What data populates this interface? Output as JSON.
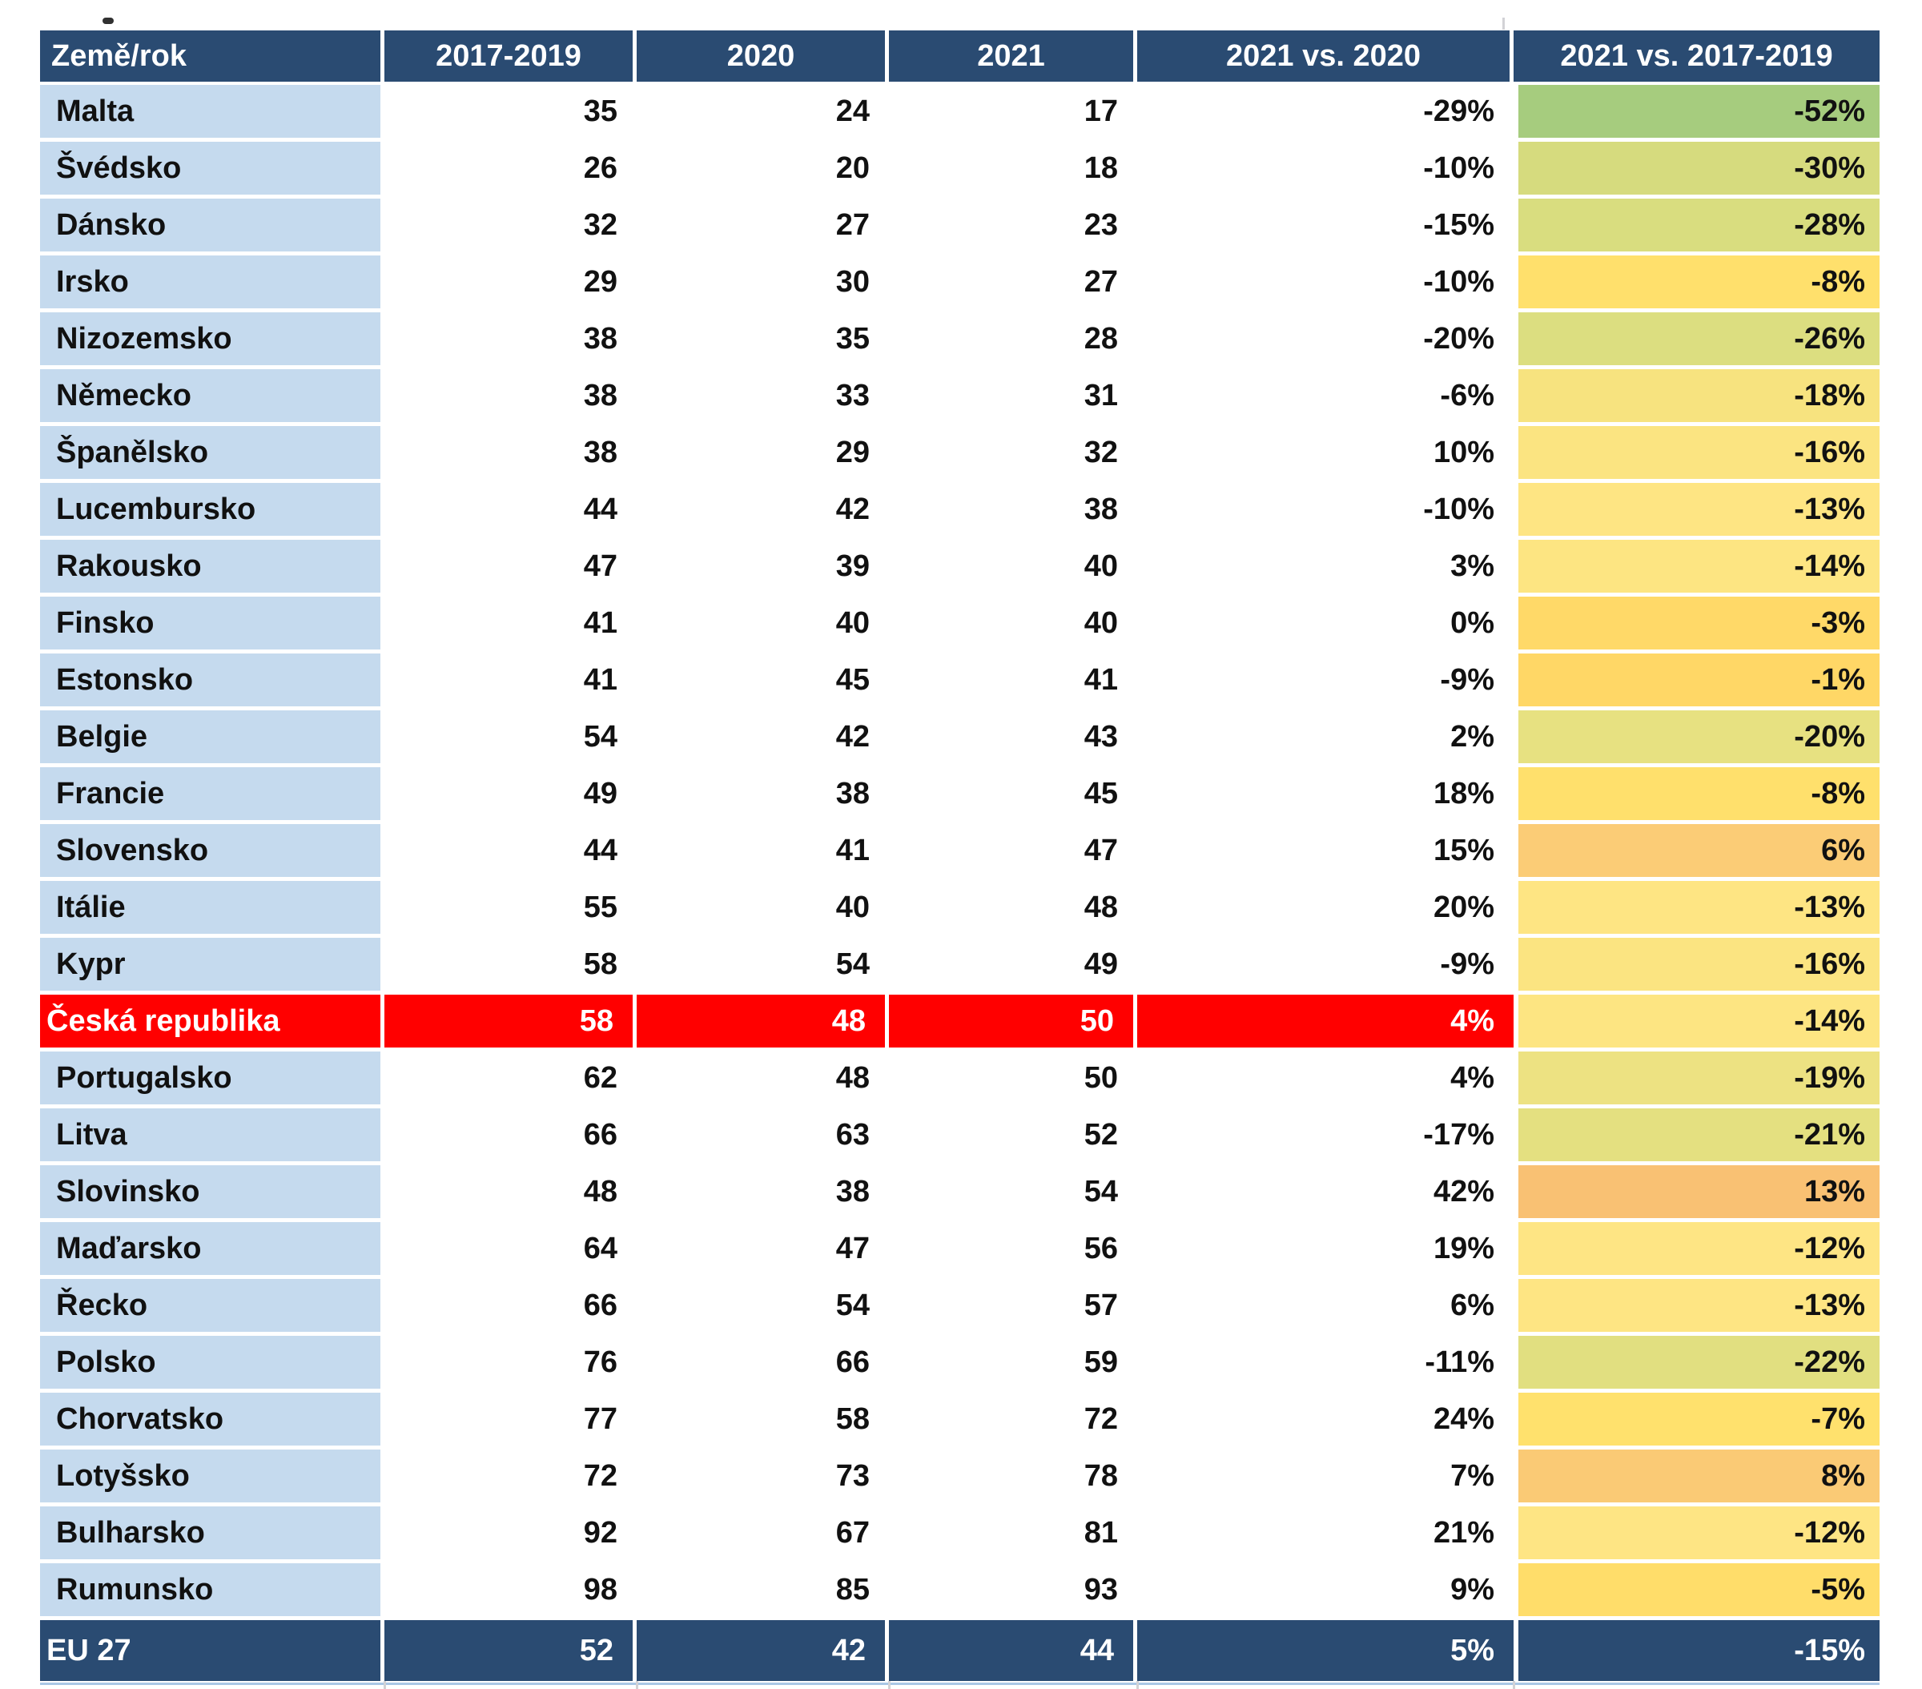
{
  "styles": {
    "header_bg": "#2A4B72",
    "header_text": "#FFFFFF",
    "country_col_bg": "#C5DAEE",
    "body_bg": "#FFFFFF",
    "body_text": "#111111",
    "highlight_row_bg": "#FF0000",
    "highlight_row_text": "#FFFFFF",
    "footer_bg": "#2A4B72",
    "footer_text": "#FFFFFF",
    "footer_accent_line": "#A9C7E6",
    "artifact_color": "#1B1B1B",
    "tick_color": "#D2D2D6"
  },
  "chart_data": {
    "type": "table",
    "title": "",
    "legend_position": "none",
    "color_scale_note": "last column shaded green (low) to orange (high) by value",
    "columns": [
      {
        "key": "country",
        "label": "Země/rok"
      },
      {
        "key": "y2017_2019",
        "label": "2017-2019"
      },
      {
        "key": "y2020",
        "label": "2020"
      },
      {
        "key": "y2021",
        "label": "2021"
      },
      {
        "key": "vs2020",
        "label": "2021 vs. 2020"
      },
      {
        "key": "vs2017_2019",
        "label": "2021 vs. 2017-2019"
      }
    ],
    "rows": [
      {
        "country": "Malta",
        "y2017_2019": 35,
        "y2020": 24,
        "y2021": 17,
        "vs2020": "-29%",
        "vs2017_2019": "-52%",
        "trend_color": "#A6CC7E",
        "highlight": false
      },
      {
        "country": "Švédsko",
        "y2017_2019": 26,
        "y2020": 20,
        "y2021": 18,
        "vs2020": "-10%",
        "vs2017_2019": "-30%",
        "trend_color": "#D6DB7E",
        "highlight": false
      },
      {
        "country": "Dánsko",
        "y2017_2019": 32,
        "y2020": 27,
        "y2021": 23,
        "vs2020": "-15%",
        "vs2017_2019": "-28%",
        "trend_color": "#D9DD7F",
        "highlight": false
      },
      {
        "country": "Irsko",
        "y2017_2019": 29,
        "y2020": 30,
        "y2021": 27,
        "vs2020": "-10%",
        "vs2017_2019": "-8%",
        "trend_color": "#FFE06C",
        "highlight": false
      },
      {
        "country": "Nizozemsko",
        "y2017_2019": 38,
        "y2020": 35,
        "y2021": 28,
        "vs2020": "-20%",
        "vs2017_2019": "-26%",
        "trend_color": "#DCDE80",
        "highlight": false
      },
      {
        "country": "Německo",
        "y2017_2019": 38,
        "y2020": 33,
        "y2021": 31,
        "vs2020": "-6%",
        "vs2017_2019": "-18%",
        "trend_color": "#F7E37F",
        "highlight": false
      },
      {
        "country": "Španělsko",
        "y2017_2019": 38,
        "y2020": 29,
        "y2021": 32,
        "vs2020": "10%",
        "vs2017_2019": "-16%",
        "trend_color": "#FBE481",
        "highlight": false
      },
      {
        "country": "Lucembursko",
        "y2017_2019": 44,
        "y2020": 42,
        "y2021": 38,
        "vs2020": "-10%",
        "vs2017_2019": "-13%",
        "trend_color": "#FEE583",
        "highlight": false
      },
      {
        "country": "Rakousko",
        "y2017_2019": 47,
        "y2020": 39,
        "y2021": 40,
        "vs2020": "3%",
        "vs2017_2019": "-14%",
        "trend_color": "#FDE582",
        "highlight": false
      },
      {
        "country": "Finsko",
        "y2017_2019": 41,
        "y2020": 40,
        "y2021": 40,
        "vs2020": "0%",
        "vs2017_2019": "-3%",
        "trend_color": "#FFD968",
        "highlight": false
      },
      {
        "country": "Estonsko",
        "y2017_2019": 41,
        "y2020": 45,
        "y2021": 41,
        "vs2020": "-9%",
        "vs2017_2019": "-1%",
        "trend_color": "#FFD766",
        "highlight": false
      },
      {
        "country": "Belgie",
        "y2017_2019": 54,
        "y2020": 42,
        "y2021": 43,
        "vs2020": "2%",
        "vs2017_2019": "-20%",
        "trend_color": "#E7E181",
        "highlight": false
      },
      {
        "country": "Francie",
        "y2017_2019": 49,
        "y2020": 38,
        "y2021": 45,
        "vs2020": "18%",
        "vs2017_2019": "-8%",
        "trend_color": "#FFE06C",
        "highlight": false
      },
      {
        "country": "Slovensko",
        "y2017_2019": 44,
        "y2020": 41,
        "y2021": 47,
        "vs2020": "15%",
        "vs2017_2019": "6%",
        "trend_color": "#FBCC76",
        "highlight": false
      },
      {
        "country": "Itálie",
        "y2017_2019": 55,
        "y2020": 40,
        "y2021": 48,
        "vs2020": "20%",
        "vs2017_2019": "-13%",
        "trend_color": "#FEE583",
        "highlight": false
      },
      {
        "country": "Kypr",
        "y2017_2019": 58,
        "y2020": 54,
        "y2021": 49,
        "vs2020": "-9%",
        "vs2017_2019": "-16%",
        "trend_color": "#FBE481",
        "highlight": false
      },
      {
        "country": "Česká republika",
        "y2017_2019": 58,
        "y2020": 48,
        "y2021": 50,
        "vs2020": "4%",
        "vs2017_2019": "-14%",
        "trend_color": "#FDE582",
        "highlight": true
      },
      {
        "country": "Portugalsko",
        "y2017_2019": 62,
        "y2020": 48,
        "y2021": 50,
        "vs2020": "4%",
        "vs2017_2019": "-19%",
        "trend_color": "#EDE282",
        "highlight": false
      },
      {
        "country": "Litva",
        "y2017_2019": 66,
        "y2020": 63,
        "y2021": 52,
        "vs2020": "-17%",
        "vs2017_2019": "-21%",
        "trend_color": "#E4E080",
        "highlight": false
      },
      {
        "country": "Slovinsko",
        "y2017_2019": 48,
        "y2020": 38,
        "y2021": 54,
        "vs2020": "42%",
        "vs2017_2019": "13%",
        "trend_color": "#F9C173",
        "highlight": false
      },
      {
        "country": "Maďarsko",
        "y2017_2019": 64,
        "y2020": 47,
        "y2021": 56,
        "vs2020": "19%",
        "vs2017_2019": "-12%",
        "trend_color": "#FEE584",
        "highlight": false
      },
      {
        "country": "Řecko",
        "y2017_2019": 66,
        "y2020": 54,
        "y2021": 57,
        "vs2020": "6%",
        "vs2017_2019": "-13%",
        "trend_color": "#FEE583",
        "highlight": false
      },
      {
        "country": "Polsko",
        "y2017_2019": 76,
        "y2020": 66,
        "y2021": 59,
        "vs2020": "-11%",
        "vs2017_2019": "-22%",
        "trend_color": "#E1DF80",
        "highlight": false
      },
      {
        "country": "Chorvatsko",
        "y2017_2019": 77,
        "y2020": 58,
        "y2021": 72,
        "vs2020": "24%",
        "vs2017_2019": "-7%",
        "trend_color": "#FFE16D",
        "highlight": false
      },
      {
        "country": "Lotyšsko",
        "y2017_2019": 72,
        "y2020": 73,
        "y2021": 78,
        "vs2020": "7%",
        "vs2017_2019": "8%",
        "trend_color": "#FACA75",
        "highlight": false
      },
      {
        "country": "Bulharsko",
        "y2017_2019": 92,
        "y2020": 67,
        "y2021": 81,
        "vs2020": "21%",
        "vs2017_2019": "-12%",
        "trend_color": "#FEE584",
        "highlight": false
      },
      {
        "country": "Rumunsko",
        "y2017_2019": 98,
        "y2020": 85,
        "y2021": 93,
        "vs2020": "9%",
        "vs2017_2019": "-5%",
        "trend_color": "#FFDD6A",
        "highlight": false
      }
    ],
    "footer": {
      "country": "EU 27",
      "y2017_2019": 52,
      "y2020": 42,
      "y2021": 44,
      "vs2020": "5%",
      "vs2017_2019": "-15%"
    }
  }
}
